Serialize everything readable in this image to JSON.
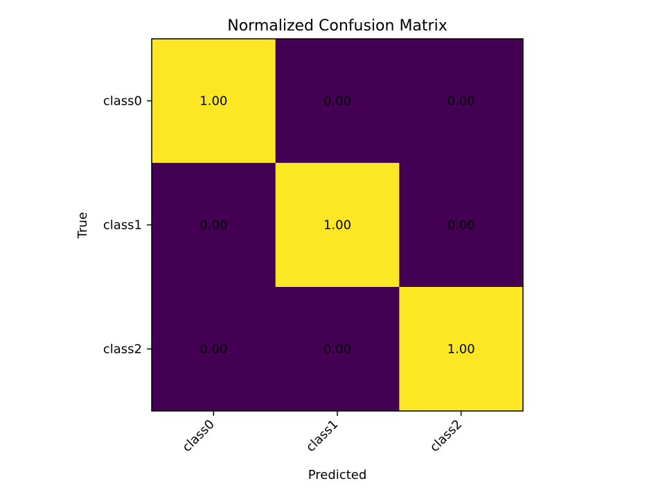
{
  "chart_data": {
    "type": "heatmap",
    "title": "Normalized Confusion Matrix",
    "xlabel": "Predicted",
    "ylabel": "True",
    "x_categories": [
      "class0",
      "class1",
      "class2"
    ],
    "y_categories": [
      "class0",
      "class1",
      "class2"
    ],
    "values": [
      [
        1.0,
        0.0,
        0.0
      ],
      [
        0.0,
        1.0,
        0.0
      ],
      [
        0.0,
        0.0,
        1.0
      ]
    ],
    "value_labels": [
      [
        "1.00",
        "0.00",
        "0.00"
      ],
      [
        "0.00",
        "1.00",
        "0.00"
      ],
      [
        "0.00",
        "0.00",
        "1.00"
      ]
    ],
    "color_scale": {
      "min": 0,
      "max": 1,
      "low_color": "#440154",
      "high_color": "#fde725"
    },
    "grid": false,
    "legend": "none"
  }
}
